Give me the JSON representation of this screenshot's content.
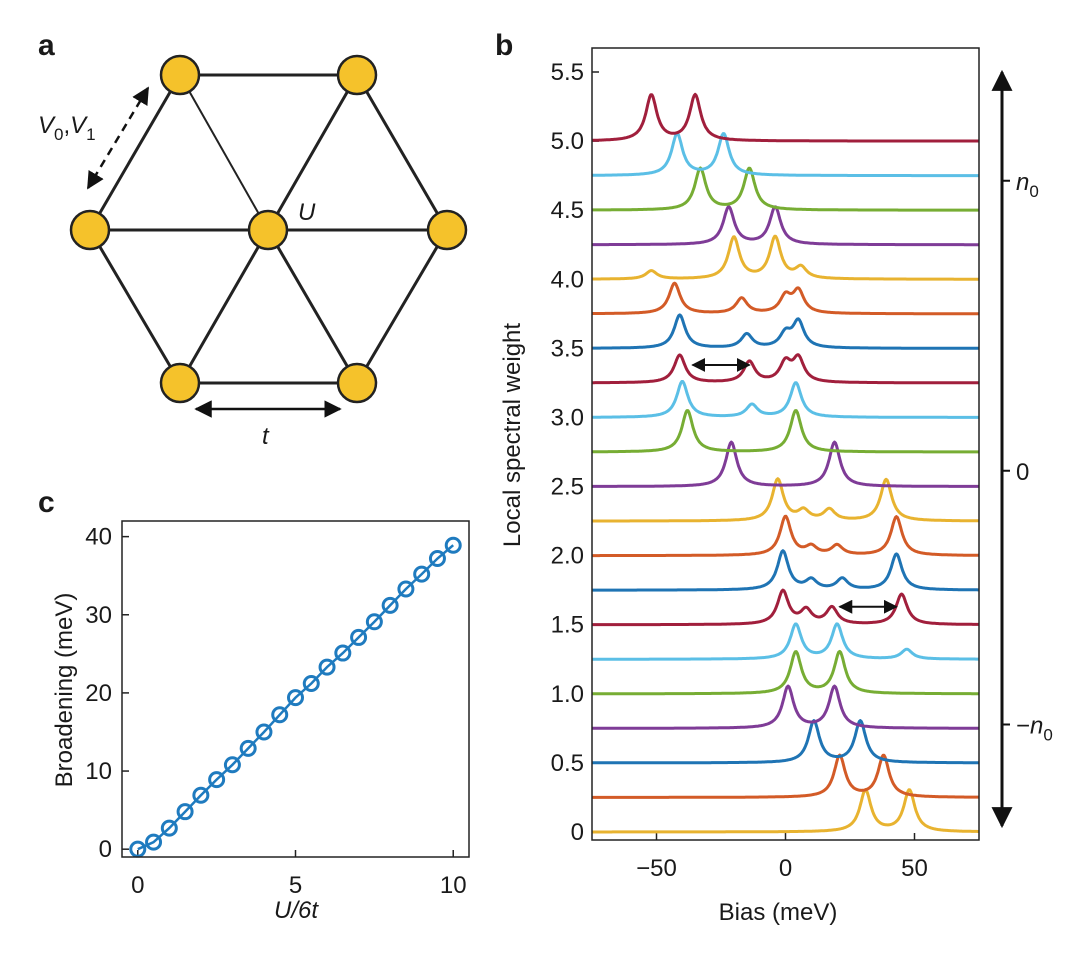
{
  "panels": {
    "a": {
      "letter": "a"
    },
    "b": {
      "letter": "b"
    },
    "c": {
      "letter": "c"
    }
  },
  "colors": {
    "node_fill": "#f5c22b",
    "node_stroke": "#222222",
    "marker": "#1f7bbf",
    "spectra": [
      "#e8b330",
      "#d35b27",
      "#1f74b4",
      "#7f3c97",
      "#77ad34",
      "#5bbfe6",
      "#a11f3c"
    ]
  },
  "chart_data": [
    {
      "id": "lattice",
      "type": "diagram",
      "description_labels": {
        "potential_label_main": "V",
        "potential_sub0": "0",
        "potential_comma": ",",
        "potential_label_second": "V",
        "potential_sub1": "1",
        "onsite_label": "U",
        "hopping_label": "t"
      },
      "nodes": [
        "top-left",
        "top-right",
        "left",
        "center",
        "right",
        "bottom-left",
        "bottom-right"
      ]
    },
    {
      "id": "spectra",
      "type": "line",
      "xlabel": "Bias (meV)",
      "ylabel": "Local spectral weight",
      "xlim": [
        -75,
        75
      ],
      "ylim": [
        0,
        5.5
      ],
      "xticks": [
        -50,
        0,
        50
      ],
      "xtick_labels": [
        "−50",
        "0",
        "50"
      ],
      "yticks": [
        0,
        0.5,
        1.0,
        1.5,
        2.0,
        2.5,
        3.0,
        3.5,
        4.0,
        4.5,
        5.0,
        5.5
      ],
      "ytick_labels": [
        "0",
        "0.5",
        "1.0",
        "1.5",
        "2.0",
        "2.5",
        "3.0",
        "3.5",
        "4.0",
        "4.5",
        "5.0",
        "5.5"
      ],
      "right_axis": {
        "labels": [
          {
            "base": "n",
            "sub": "0",
            "prefix": "",
            "value": 4.5
          },
          {
            "base": "0",
            "sub": "",
            "prefix": "",
            "value": 2.5
          },
          {
            "base": "n",
            "sub": "0",
            "prefix": "−",
            "value": 0.75
          }
        ],
        "range": [
          0.05,
          5.25
        ]
      },
      "series": [
        {
          "offset": 0.0,
          "color_index": 0,
          "peaks": [
            [
              31,
              0.3
            ],
            [
              48,
              0.3
            ]
          ]
        },
        {
          "offset": 0.25,
          "color_index": 1,
          "peaks": [
            [
              21,
              0.3
            ],
            [
              38,
              0.3
            ]
          ]
        },
        {
          "offset": 0.5,
          "color_index": 2,
          "peaks": [
            [
              11,
              0.3
            ],
            [
              29,
              0.3
            ]
          ]
        },
        {
          "offset": 0.75,
          "color_index": 3,
          "peaks": [
            [
              1,
              0.3
            ],
            [
              19,
              0.3
            ]
          ]
        },
        {
          "offset": 1.0,
          "color_index": 4,
          "peaks": [
            [
              4,
              0.3
            ],
            [
              21,
              0.3
            ]
          ]
        },
        {
          "offset": 1.25,
          "color_index": 5,
          "peaks": [
            [
              4,
              0.25
            ],
            [
              20,
              0.25
            ],
            [
              47,
              0.07
            ]
          ]
        },
        {
          "offset": 1.5,
          "color_index": 6,
          "peaks": [
            [
              -1,
              0.24
            ],
            [
              8,
              0.1
            ],
            [
              18,
              0.12
            ],
            [
              45,
              0.22
            ]
          ]
        },
        {
          "offset": 1.75,
          "color_index": 2,
          "peaks": [
            [
              -1,
              0.28
            ],
            [
              10,
              0.07
            ],
            [
              22,
              0.08
            ],
            [
              43,
              0.26
            ]
          ]
        },
        {
          "offset": 2.0,
          "color_index": 1,
          "peaks": [
            [
              0,
              0.28
            ],
            [
              10,
              0.06
            ],
            [
              20,
              0.07
            ],
            [
              43,
              0.28
            ]
          ]
        },
        {
          "offset": 2.25,
          "color_index": 0,
          "peaks": [
            [
              -3,
              0.3
            ],
            [
              7,
              0.07
            ],
            [
              17,
              0.08
            ],
            [
              39,
              0.3
            ]
          ]
        },
        {
          "offset": 2.5,
          "color_index": 3,
          "peaks": [
            [
              -21,
              0.32
            ],
            [
              19,
              0.32
            ]
          ]
        },
        {
          "offset": 2.75,
          "color_index": 4,
          "peaks": [
            [
              -38,
              0.3
            ],
            [
              4,
              0.3
            ]
          ]
        },
        {
          "offset": 3.0,
          "color_index": 5,
          "peaks": [
            [
              -40,
              0.26
            ],
            [
              -13,
              0.09
            ],
            [
              4,
              0.25
            ]
          ]
        },
        {
          "offset": 3.25,
          "color_index": 6,
          "peaks": [
            [
              -41,
              0.2
            ],
            [
              -14,
              0.15
            ],
            [
              0,
              0.14
            ],
            [
              5,
              0.17
            ]
          ]
        },
        {
          "offset": 3.5,
          "color_index": 2,
          "peaks": [
            [
              -41,
              0.24
            ],
            [
              -15,
              0.1
            ],
            [
              0,
              0.1
            ],
            [
              5,
              0.19
            ]
          ]
        },
        {
          "offset": 3.75,
          "color_index": 1,
          "peaks": [
            [
              -43,
              0.22
            ],
            [
              -17,
              0.11
            ],
            [
              0,
              0.12
            ],
            [
              5,
              0.16
            ]
          ]
        },
        {
          "offset": 4.0,
          "color_index": 0,
          "peaks": [
            [
              -52,
              0.06
            ],
            [
              -20,
              0.3
            ],
            [
              -4,
              0.3
            ],
            [
              6,
              0.08
            ]
          ]
        },
        {
          "offset": 4.25,
          "color_index": 3,
          "peaks": [
            [
              -22,
              0.27
            ],
            [
              -4,
              0.27
            ]
          ]
        },
        {
          "offset": 4.5,
          "color_index": 4,
          "peaks": [
            [
              -33,
              0.3
            ],
            [
              -14,
              0.3
            ]
          ]
        },
        {
          "offset": 4.75,
          "color_index": 5,
          "peaks": [
            [
              -42,
              0.3
            ],
            [
              -24,
              0.3
            ]
          ]
        },
        {
          "offset": 5.0,
          "color_index": 6,
          "peaks": [
            [
              -52,
              0.33
            ],
            [
              -35,
              0.33
            ]
          ]
        }
      ],
      "annotations": [
        {
          "type": "double_arrow",
          "x1": -36,
          "x2": -14,
          "y": 3.38
        },
        {
          "type": "double_arrow",
          "x1": 21,
          "x2": 43,
          "y": 1.63
        }
      ]
    },
    {
      "id": "broadening",
      "type": "scatter",
      "xlabel_main": "U",
      "xlabel_rest": "/6t",
      "ylabel": "Broadening (meV)",
      "xlim": [
        -0.5,
        10.5
      ],
      "ylim": [
        -1,
        42
      ],
      "xticks": [
        0,
        5,
        10
      ],
      "xtick_labels": [
        "0",
        "5",
        "10"
      ],
      "yticks": [
        0,
        10,
        20,
        30,
        40
      ],
      "ytick_labels": [
        "0",
        "10",
        "20",
        "30",
        "40"
      ],
      "x": [
        0,
        0.5,
        1,
        1.5,
        2,
        2.5,
        3,
        3.5,
        4,
        4.5,
        5,
        5.5,
        6,
        6.5,
        7,
        7.5,
        8,
        8.5,
        9,
        9.5,
        10
      ],
      "y": [
        0,
        0.9,
        2.7,
        4.8,
        6.9,
        8.9,
        10.8,
        12.9,
        15.0,
        17.2,
        19.4,
        21.2,
        23.3,
        25.1,
        27.1,
        29.1,
        31.2,
        33.3,
        35.2,
        37.2,
        38.9
      ]
    }
  ]
}
